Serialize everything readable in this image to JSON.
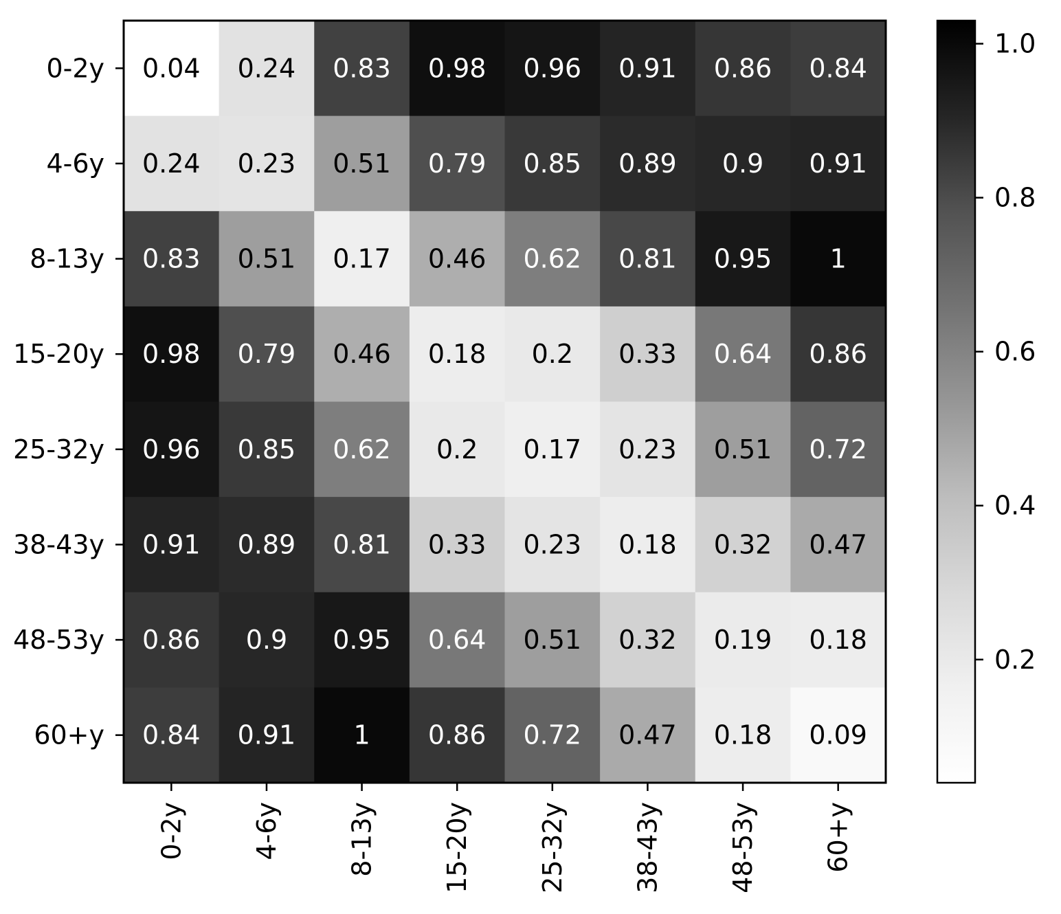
{
  "chart_data": {
    "type": "heatmap",
    "title": "",
    "xlabel": "",
    "ylabel": "",
    "x_categories": [
      "0-2y",
      "4-6y",
      "8-13y",
      "15-20y",
      "25-32y",
      "38-43y",
      "48-53y",
      "60+y"
    ],
    "y_categories": [
      "0-2y",
      "4-6y",
      "8-13y",
      "15-20y",
      "25-32y",
      "38-43y",
      "48-53y",
      "60+y"
    ],
    "values": [
      [
        0.04,
        0.24,
        0.83,
        0.98,
        0.96,
        0.91,
        0.86,
        0.84
      ],
      [
        0.24,
        0.23,
        0.51,
        0.79,
        0.85,
        0.89,
        0.9,
        0.91
      ],
      [
        0.83,
        0.51,
        0.17,
        0.46,
        0.62,
        0.81,
        0.95,
        1
      ],
      [
        0.98,
        0.79,
        0.46,
        0.18,
        0.2,
        0.33,
        0.64,
        0.86
      ],
      [
        0.96,
        0.85,
        0.62,
        0.2,
        0.17,
        0.23,
        0.51,
        0.72
      ],
      [
        0.91,
        0.89,
        0.81,
        0.33,
        0.23,
        0.18,
        0.32,
        0.47
      ],
      [
        0.86,
        0.9,
        0.95,
        0.64,
        0.51,
        0.32,
        0.19,
        0.18
      ],
      [
        0.84,
        0.91,
        1,
        0.86,
        0.72,
        0.47,
        0.18,
        0.09
      ]
    ],
    "colormap": "Greys",
    "vmin": 0.04,
    "vmax": 1.03,
    "colorbar": {
      "ticks": [
        0.2,
        0.4,
        0.6,
        0.8,
        1.0
      ],
      "tick_labels": [
        "0.2",
        "0.4",
        "0.6",
        "0.8",
        "1.0"
      ]
    },
    "x_tick_rotation": "vertical",
    "grid": false
  }
}
